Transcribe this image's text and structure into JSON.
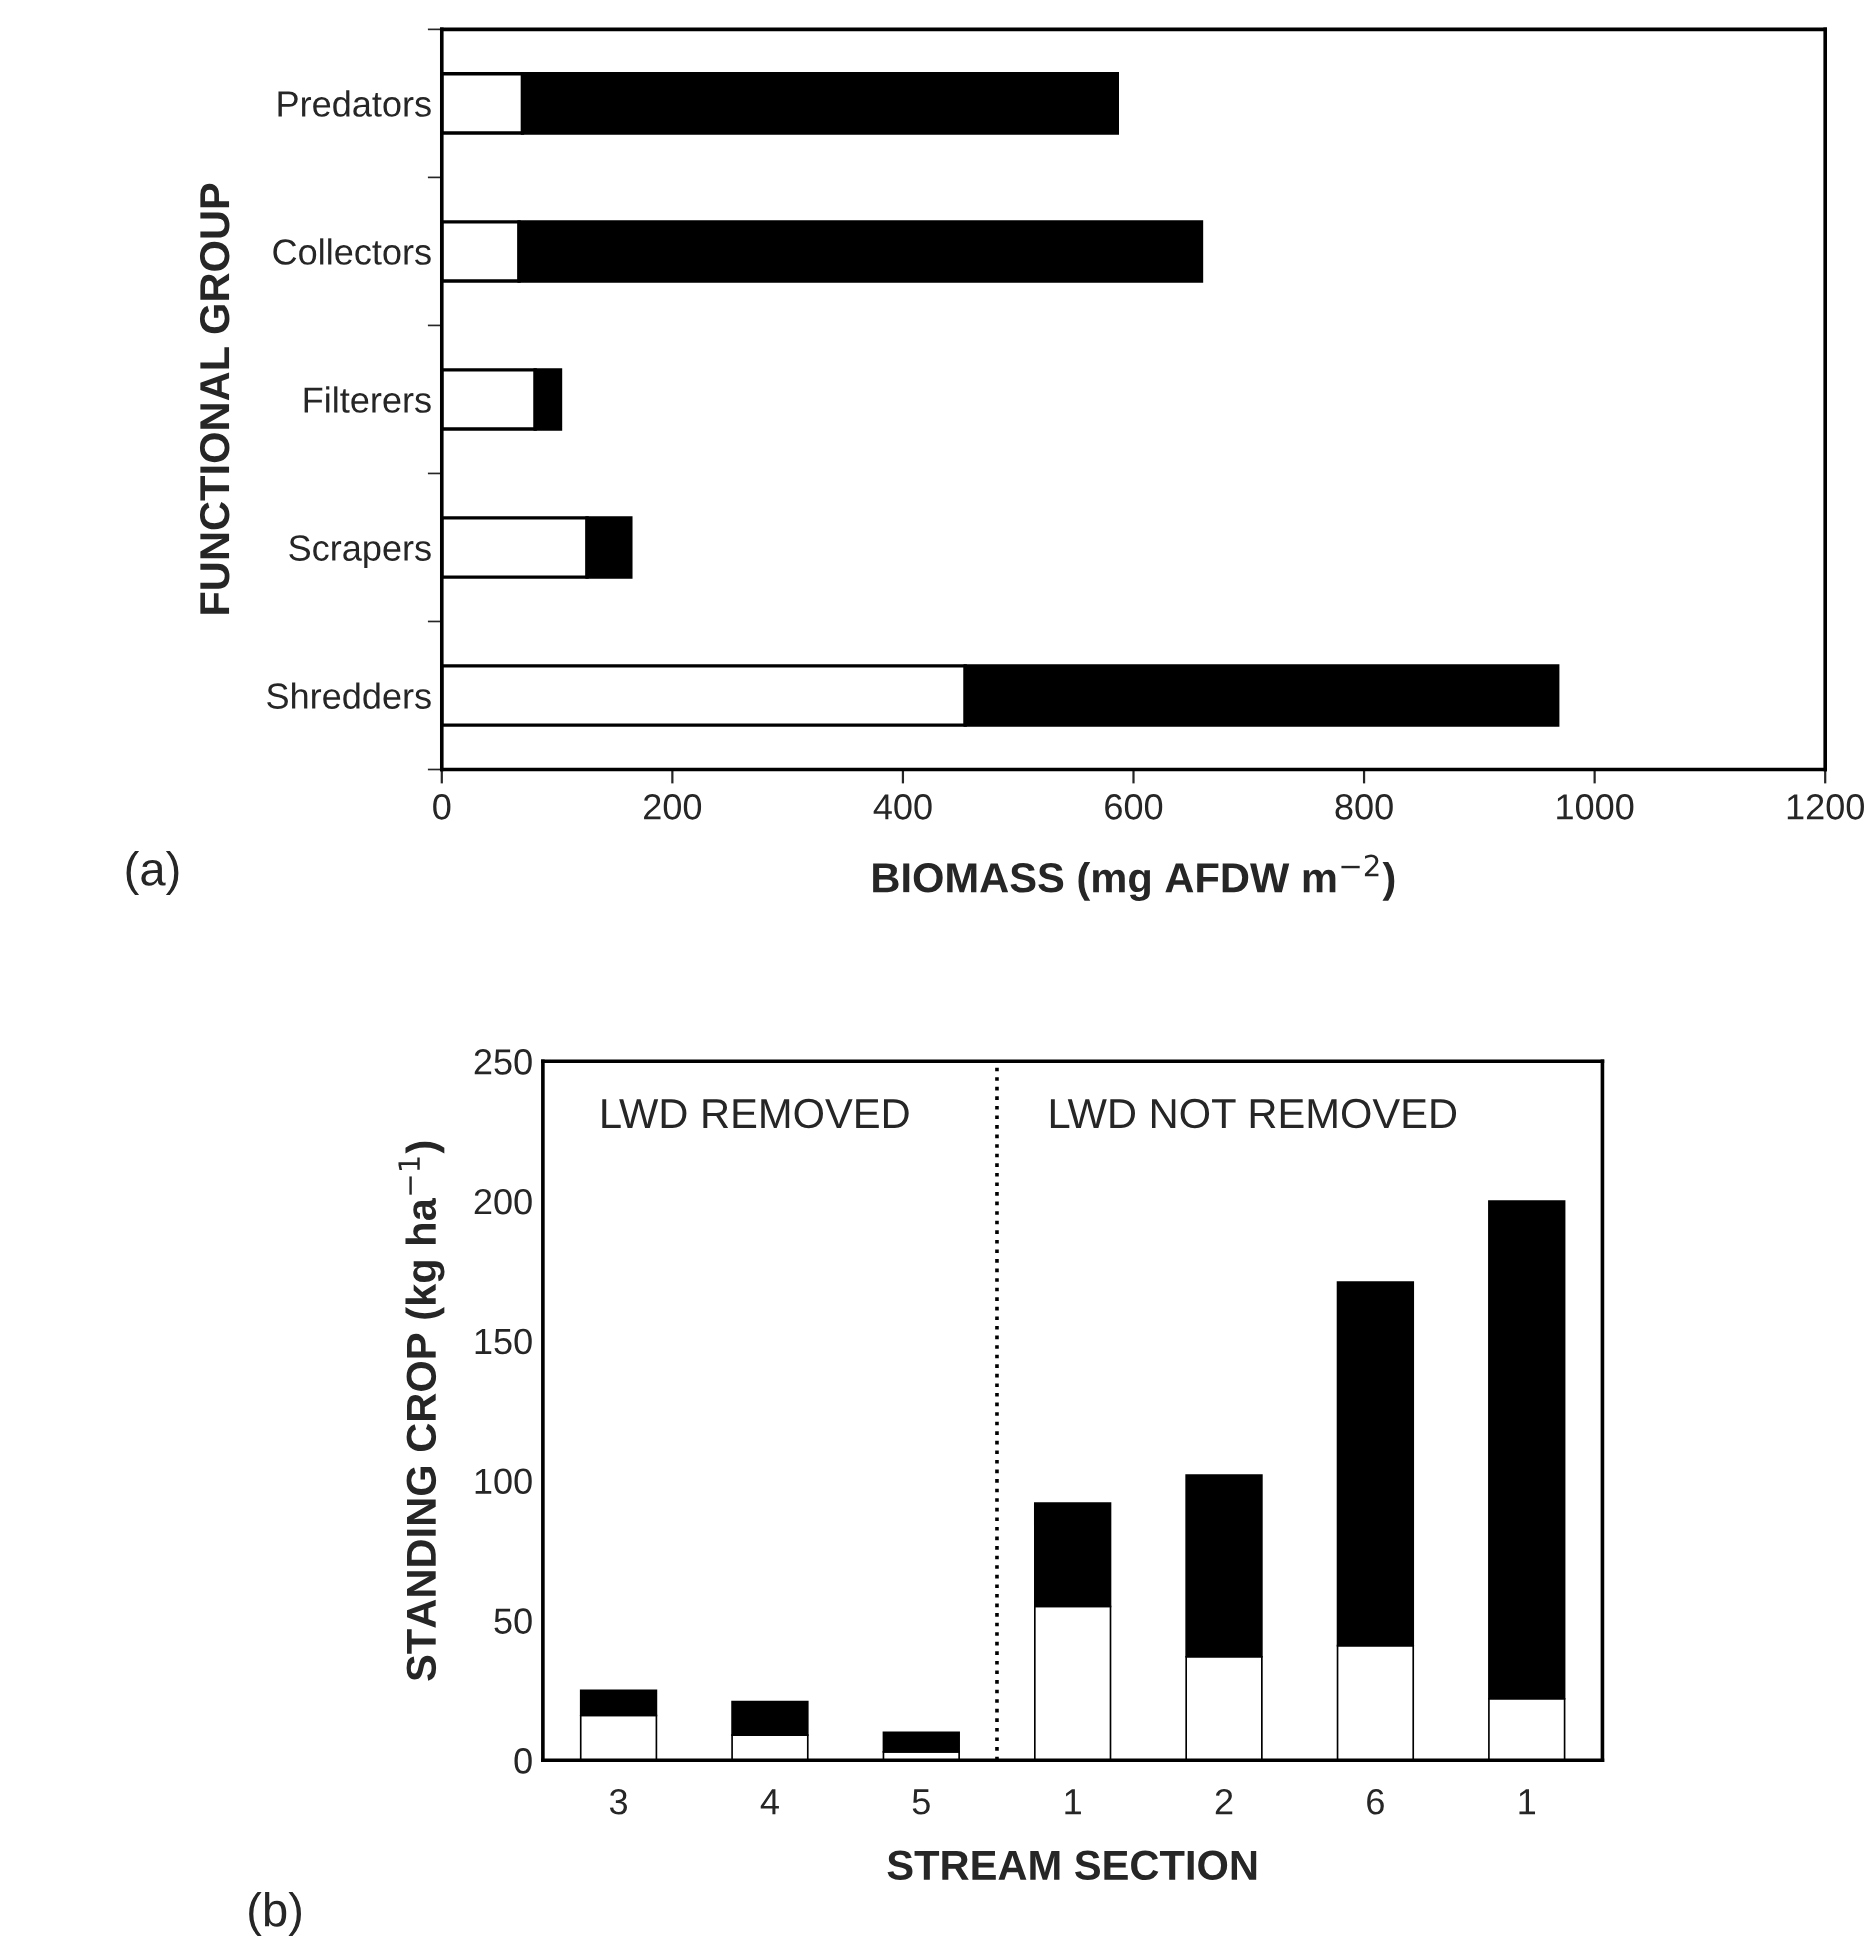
{
  "chart_data": [
    {
      "type": "bar",
      "orientation": "horizontal",
      "stacked": true,
      "ylabel": "FUNCTIONAL GROUP",
      "xlabel": "BIOMASS (mg AFDW m$^{−2}$)",
      "categories": [
        "Predators",
        "Collectors",
        "Filterers",
        "Scrapers",
        "Shredders"
      ],
      "series": [
        {
          "color": "#ffffff",
          "values": [
            70,
            67,
            81,
            126,
            454
          ]
        },
        {
          "color": "#000000",
          "values": [
            516,
            592,
            22,
            38,
            514
          ]
        }
      ],
      "xlim": [
        0,
        1200
      ],
      "xticks": [
        0,
        200,
        400,
        600,
        800,
        1000,
        1200
      ],
      "grid": false,
      "annotations": [
        "(a)"
      ]
    },
    {
      "type": "bar",
      "stacked": true,
      "ylabel": "STANDING CROP (kg ha$^{−1}$)",
      "xlabel": "STREAM SECTION",
      "categories": [
        "3",
        "4",
        "5",
        "1",
        "2",
        "6",
        "1"
      ],
      "series": [
        {
          "color": "#ffffff",
          "values": [
            16,
            9,
            3,
            55,
            37,
            41,
            22
          ]
        },
        {
          "color": "#000000",
          "values": [
            9,
            12,
            7,
            37,
            65,
            130,
            178
          ]
        }
      ],
      "ylim": [
        0,
        250
      ],
      "yticks": [
        0,
        50,
        100,
        150,
        200,
        250
      ],
      "grid": false,
      "annotations": [
        "(b)",
        "LWD REMOVED",
        "LWD NOT REMOVED"
      ]
    }
  ]
}
